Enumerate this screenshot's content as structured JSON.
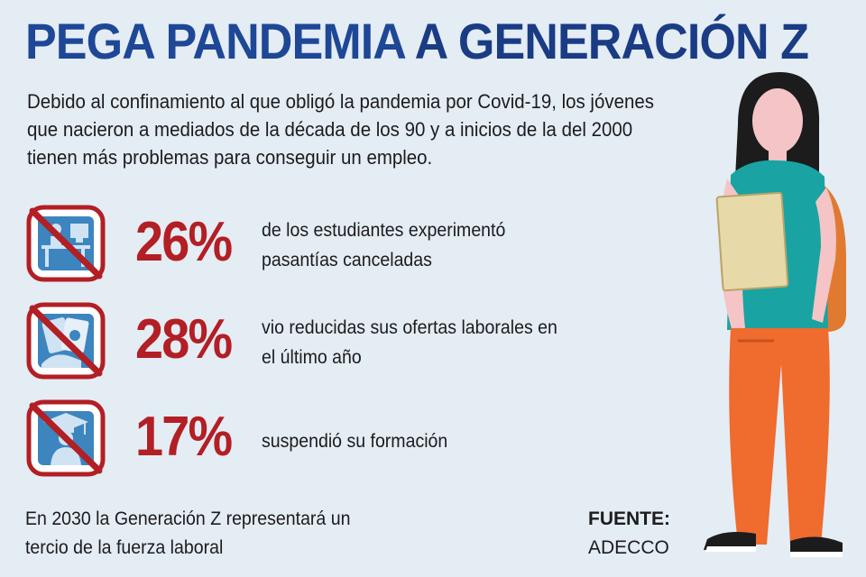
{
  "header": {
    "title_part1": "PEGA PANDEMIA",
    "title_part2": "A GENERACIÓN Z"
  },
  "intro": "Debido al confinamiento al que obligó la pandemia por Covid-19, los jóvenes que nacieron a mediados de la década de los 90 y a inicios de la del 2000 tienen más problemas para conseguir un empleo.",
  "stats": [
    {
      "value": "26%",
      "description": "de los estudiantes experimentó pasantías canceladas",
      "icon": "no-workstation-icon"
    },
    {
      "value": "28%",
      "description": "vio reducidas  sus ofertas laborales en el último año",
      "icon": "no-money-icon"
    },
    {
      "value": "17%",
      "description": "suspendió su formación",
      "icon": "no-graduation-icon"
    }
  ],
  "footer": {
    "note": "En 2030 la Generación Z representará un tercio de la fuerza laboral",
    "source_label": "FUENTE:",
    "source_value": "ADECCO"
  },
  "colors": {
    "background": "#e4ecf4",
    "title_blue": "#1e4796",
    "stat_red": "#b21f24",
    "icon_blue": "#3d85bf"
  }
}
